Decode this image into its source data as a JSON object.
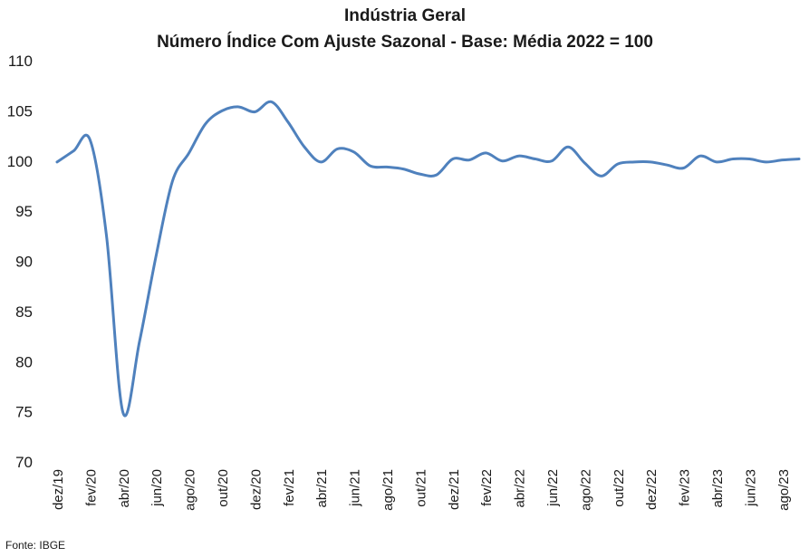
{
  "chart_data": {
    "type": "line",
    "title": "Indústria Geral",
    "subtitle": "Número Índice Com Ajuste Sazonal - Base: Média 2022 = 100",
    "xlabel": "",
    "ylabel": "",
    "ylim": [
      70,
      110
    ],
    "yticks": [
      70,
      75,
      80,
      85,
      90,
      95,
      100,
      105,
      110
    ],
    "grid": false,
    "legend": "none",
    "line_color": "#4F81BD",
    "x": [
      "dez/19",
      "jan/20",
      "fev/20",
      "mar/20",
      "abr/20",
      "mai/20",
      "jun/20",
      "jul/20",
      "ago/20",
      "set/20",
      "out/20",
      "nov/20",
      "dez/20",
      "jan/21",
      "fev/21",
      "mar/21",
      "abr/21",
      "mai/21",
      "jun/21",
      "jul/21",
      "ago/21",
      "set/21",
      "out/21",
      "nov/21",
      "dez/21",
      "jan/22",
      "fev/22",
      "mar/22",
      "abr/22",
      "mai/22",
      "jun/22",
      "jul/22",
      "ago/22",
      "set/22",
      "out/22",
      "nov/22",
      "dez/22",
      "jan/23",
      "fev/23",
      "mar/23",
      "abr/23",
      "mai/23",
      "jun/23",
      "jul/23",
      "ago/23",
      "set/23"
    ],
    "x_tick_labels": [
      "dez/19",
      "fev/20",
      "abr/20",
      "jun/20",
      "ago/20",
      "out/20",
      "dez/20",
      "fev/21",
      "abr/21",
      "jun/21",
      "ago/21",
      "out/21",
      "dez/21",
      "fev/22",
      "abr/22",
      "jun/22",
      "ago/22",
      "out/22",
      "dez/22",
      "fev/23",
      "abr/23",
      "jun/23",
      "ago/23"
    ],
    "series": [
      {
        "values": [
          99.9,
          101.0,
          102.1,
          92.5,
          74.9,
          82.0,
          90.5,
          98.0,
          100.8,
          103.7,
          105.0,
          105.4,
          104.9,
          105.9,
          103.9,
          101.4,
          99.9,
          101.2,
          100.9,
          99.5,
          99.4,
          99.2,
          98.7,
          98.6,
          100.2,
          100.1,
          100.8,
          100.0,
          100.5,
          100.2,
          100.0,
          101.4,
          99.8,
          98.5,
          99.7,
          99.9,
          99.9,
          99.6,
          99.3,
          100.5,
          99.9,
          100.2,
          100.2,
          99.9,
          100.1,
          100.2
        ]
      }
    ],
    "source": "Fonte: IBGE"
  }
}
